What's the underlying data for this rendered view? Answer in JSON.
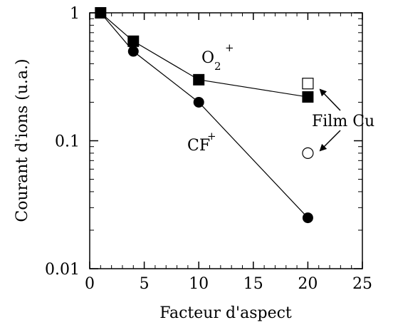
{
  "chart_data": {
    "type": "scatter",
    "xlabel": "Facteur d'aspect",
    "ylabel": "Courant d'ions (u.a.)",
    "xlim": [
      0,
      25
    ],
    "ylim": [
      0.01,
      1
    ],
    "yscale": "log",
    "xticks": [
      0,
      5,
      10,
      15,
      20,
      25
    ],
    "xtick_labels": [
      "0",
      "5",
      "10",
      "15",
      "20",
      "25"
    ],
    "yticks": [
      0.01,
      0.1,
      1
    ],
    "ytick_labels": [
      "0.01",
      "0.1",
      "1"
    ],
    "grid": false,
    "series": [
      {
        "name": "O2+",
        "marker": "filled-square",
        "connected": true,
        "x": [
          1,
          4,
          10,
          20
        ],
        "y": [
          1.0,
          0.6,
          0.3,
          0.22
        ]
      },
      {
        "name": "CF+",
        "marker": "filled-circle",
        "connected": true,
        "x": [
          1,
          4,
          10,
          20
        ],
        "y": [
          1.0,
          0.5,
          0.2,
          0.025
        ]
      },
      {
        "name": "O2+ Film Cu",
        "marker": "open-square",
        "connected": false,
        "x": [
          20
        ],
        "y": [
          0.28
        ]
      },
      {
        "name": "CF+ Film Cu",
        "marker": "open-circle",
        "connected": false,
        "x": [
          20
        ],
        "y": [
          0.08
        ]
      }
    ],
    "annotations": {
      "o2_main": "O",
      "o2_sub": "2",
      "o2_sup": "+",
      "cf_main": "CF",
      "cf_sup": "+",
      "film": "Film Cu"
    },
    "colors": {
      "ink": "#000000",
      "background": "#ffffff"
    }
  }
}
